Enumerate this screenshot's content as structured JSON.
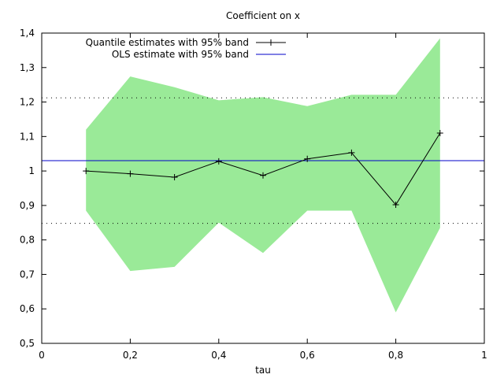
{
  "chart_data": {
    "type": "line",
    "title": "Coefficient on x",
    "xlabel": "tau",
    "ylabel": "",
    "xlim": [
      0,
      1
    ],
    "ylim": [
      0.5,
      1.4
    ],
    "xticks": [
      0,
      0.2,
      0.4,
      0.6,
      0.8,
      1
    ],
    "xtick_labels": [
      "0",
      "0,2",
      "0,4",
      "0,6",
      "0,8",
      "1"
    ],
    "yticks": [
      0.5,
      0.6,
      0.7,
      0.8,
      0.9,
      1.0,
      1.1,
      1.2,
      1.3,
      1.4
    ],
    "ytick_labels": [
      "0,5",
      "0,6",
      "0,7",
      "0,8",
      "0,9",
      "1",
      "1,1",
      "1,2",
      "1,3",
      "1,4"
    ],
    "grid": false,
    "legend_position": "top-left",
    "series": [
      {
        "name": "Quantile estimates with 95% band",
        "x": [
          0.1,
          0.2,
          0.3,
          0.4,
          0.5,
          0.6,
          0.7,
          0.8,
          0.9
        ],
        "y": [
          1.0,
          0.992,
          0.982,
          1.028,
          0.987,
          1.035,
          1.053,
          0.902,
          1.11
        ],
        "lower": [
          0.885,
          0.71,
          0.722,
          0.85,
          0.762,
          0.885,
          0.885,
          0.59,
          0.835
        ],
        "upper": [
          1.12,
          1.274,
          1.243,
          1.205,
          1.214,
          1.188,
          1.221,
          1.221,
          1.385
        ],
        "line_color": "#000000",
        "band_color": "#9aea98"
      },
      {
        "name": "OLS estimate with 95% band",
        "value": 1.03,
        "lower": 0.848,
        "upper": 1.212,
        "line_color": "#0000c8"
      }
    ]
  }
}
